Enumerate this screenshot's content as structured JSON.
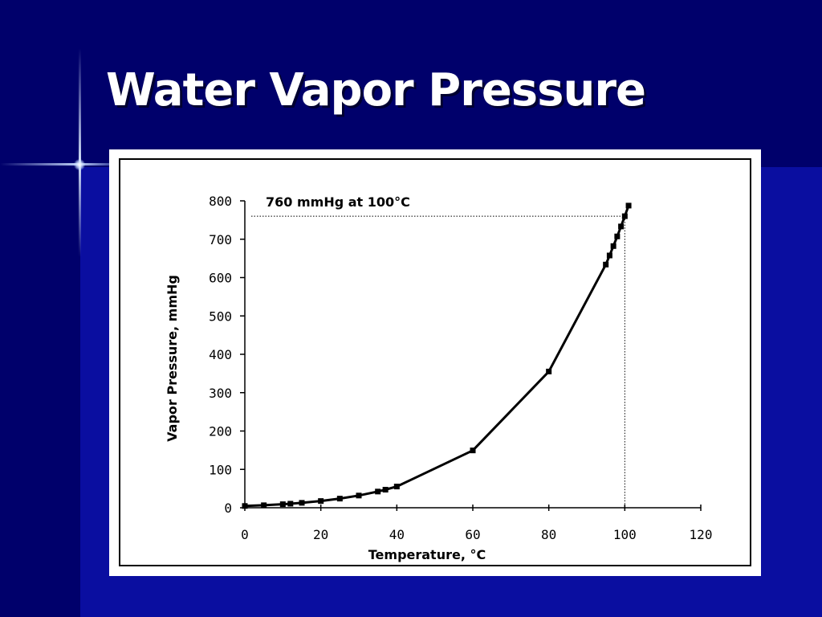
{
  "slide": {
    "title": "Water Vapor Pressure",
    "colors": {
      "background": "#00006b",
      "title": "#ffffff",
      "panel": "#ffffff",
      "ink": "#000000"
    }
  },
  "chart_data": {
    "type": "scatter",
    "title": "",
    "xlabel": "Temperature, °C",
    "ylabel": "Vapor Pressure, mmHg",
    "xlim": [
      0,
      120
    ],
    "ylim": [
      0,
      800
    ],
    "xticks": [
      0,
      20,
      40,
      60,
      80,
      100,
      120
    ],
    "yticks": [
      0,
      100,
      200,
      300,
      400,
      500,
      600,
      700,
      800
    ],
    "grid": false,
    "legend": "none",
    "series": [
      {
        "marker": "square",
        "connected": true,
        "x": [
          0,
          5,
          10,
          12,
          15,
          20,
          25,
          30,
          35,
          37,
          40,
          60,
          80,
          95,
          96,
          97,
          98,
          99,
          100,
          101
        ],
        "y": [
          4.6,
          6.5,
          9.2,
          10.5,
          12.8,
          17.5,
          23.8,
          31.8,
          42.2,
          47.1,
          55.3,
          149.4,
          355.1,
          633.9,
          657.6,
          682.1,
          707.3,
          733.2,
          760.0,
          787.6
        ]
      }
    ],
    "annotation": {
      "text": "760 mmHg at 100°C",
      "x": 100,
      "y": 760
    }
  }
}
